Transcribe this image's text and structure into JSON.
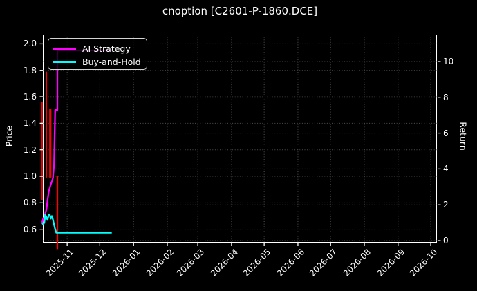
{
  "title": "cnoption [C2601-P-1860.DCE]",
  "colors": {
    "background": "#000000",
    "foreground": "#ffffff",
    "grid": "#545454",
    "ai_strategy": "#ff00ff",
    "buy_and_hold": "#00ffff",
    "signal_line": "#ff0000",
    "legend_border": "#d4d4d4"
  },
  "legend": {
    "items": [
      {
        "label": "AI Strategy",
        "color_key": "ai_strategy"
      },
      {
        "label": "Buy-and-Hold",
        "color_key": "buy_and_hold"
      }
    ]
  },
  "left_axis": {
    "label": "Price",
    "ticks": [
      0.6,
      0.8,
      1.0,
      1.2,
      1.4,
      1.6,
      1.8,
      2.0
    ],
    "range": [
      0.499,
      2.07
    ]
  },
  "right_axis": {
    "label": "Return",
    "ticks": [
      0,
      2,
      4,
      6,
      8,
      10
    ],
    "range": [
      0,
      11.66
    ]
  },
  "x_axis": {
    "ticks": [
      "2025-11",
      "2025-12",
      "2026-01",
      "2026-02",
      "2026-03",
      "2026-04",
      "2026-05",
      "2026-06",
      "2026-07",
      "2026-08",
      "2026-09",
      "2026-10"
    ],
    "range": [
      "2025-10-10",
      "2026-10-07"
    ]
  },
  "chart_data": {
    "type": "line",
    "title": "cnoption [C2601-P-1860.DCE]",
    "xlabel": "",
    "ylabel_left": "Price",
    "ylabel_right": "Return",
    "grid": "dotted, both axes",
    "legend_position": "upper left",
    "series": [
      {
        "name": "AI Strategy",
        "color_key": "ai_strategy",
        "axis": "left",
        "line_width": 2.3,
        "points": [
          [
            "2025-10-09",
            0.65
          ],
          [
            "2025-10-10",
            0.68
          ],
          [
            "2025-10-11",
            0.69
          ],
          [
            "2025-10-12",
            0.72
          ],
          [
            "2025-10-13",
            0.75
          ],
          [
            "2025-10-14",
            0.82
          ],
          [
            "2025-10-15",
            0.88
          ],
          [
            "2025-10-16",
            0.91
          ],
          [
            "2025-10-17",
            0.94
          ],
          [
            "2025-10-18",
            0.96
          ],
          [
            "2025-10-19",
            0.99
          ],
          [
            "2025-10-20",
            1.09
          ],
          [
            "2025-10-21",
            1.5
          ],
          [
            "2025-10-23",
            1.5
          ],
          [
            "2025-10-23",
            1.95
          ],
          [
            "2025-12-12",
            1.95
          ]
        ]
      },
      {
        "name": "Buy-and-Hold",
        "color_key": "buy_and_hold",
        "axis": "left",
        "line_width": 2.3,
        "points": [
          [
            "2025-10-09",
            0.65
          ],
          [
            "2025-10-10",
            0.635
          ],
          [
            "2025-10-11",
            0.65
          ],
          [
            "2025-10-12",
            0.71
          ],
          [
            "2025-10-13",
            0.69
          ],
          [
            "2025-10-14",
            0.67
          ],
          [
            "2025-10-15",
            0.71
          ],
          [
            "2025-10-16",
            0.71
          ],
          [
            "2025-10-17",
            0.68
          ],
          [
            "2025-10-18",
            0.7
          ],
          [
            "2025-10-19",
            0.67
          ],
          [
            "2025-10-20",
            0.635
          ],
          [
            "2025-10-21",
            0.6
          ],
          [
            "2025-10-22",
            0.574
          ],
          [
            "2025-12-12",
            0.574
          ]
        ]
      }
    ],
    "signal_vlines": [
      {
        "date": "2025-10-09",
        "from": 1.56,
        "to": 0.82,
        "width": 1.7
      },
      {
        "date": "2025-10-13",
        "from": 1.79,
        "to": 0.99,
        "width": 1.6
      },
      {
        "date": "2025-10-16",
        "from": 1.51,
        "to": 0.99,
        "width": 1.6
      },
      {
        "date": "2025-10-17",
        "from": 1.51,
        "to": 0.99,
        "width": 1.6
      },
      {
        "date": "2025-10-23",
        "from": 1.0,
        "to": 0.45,
        "width": 2.3
      }
    ]
  }
}
